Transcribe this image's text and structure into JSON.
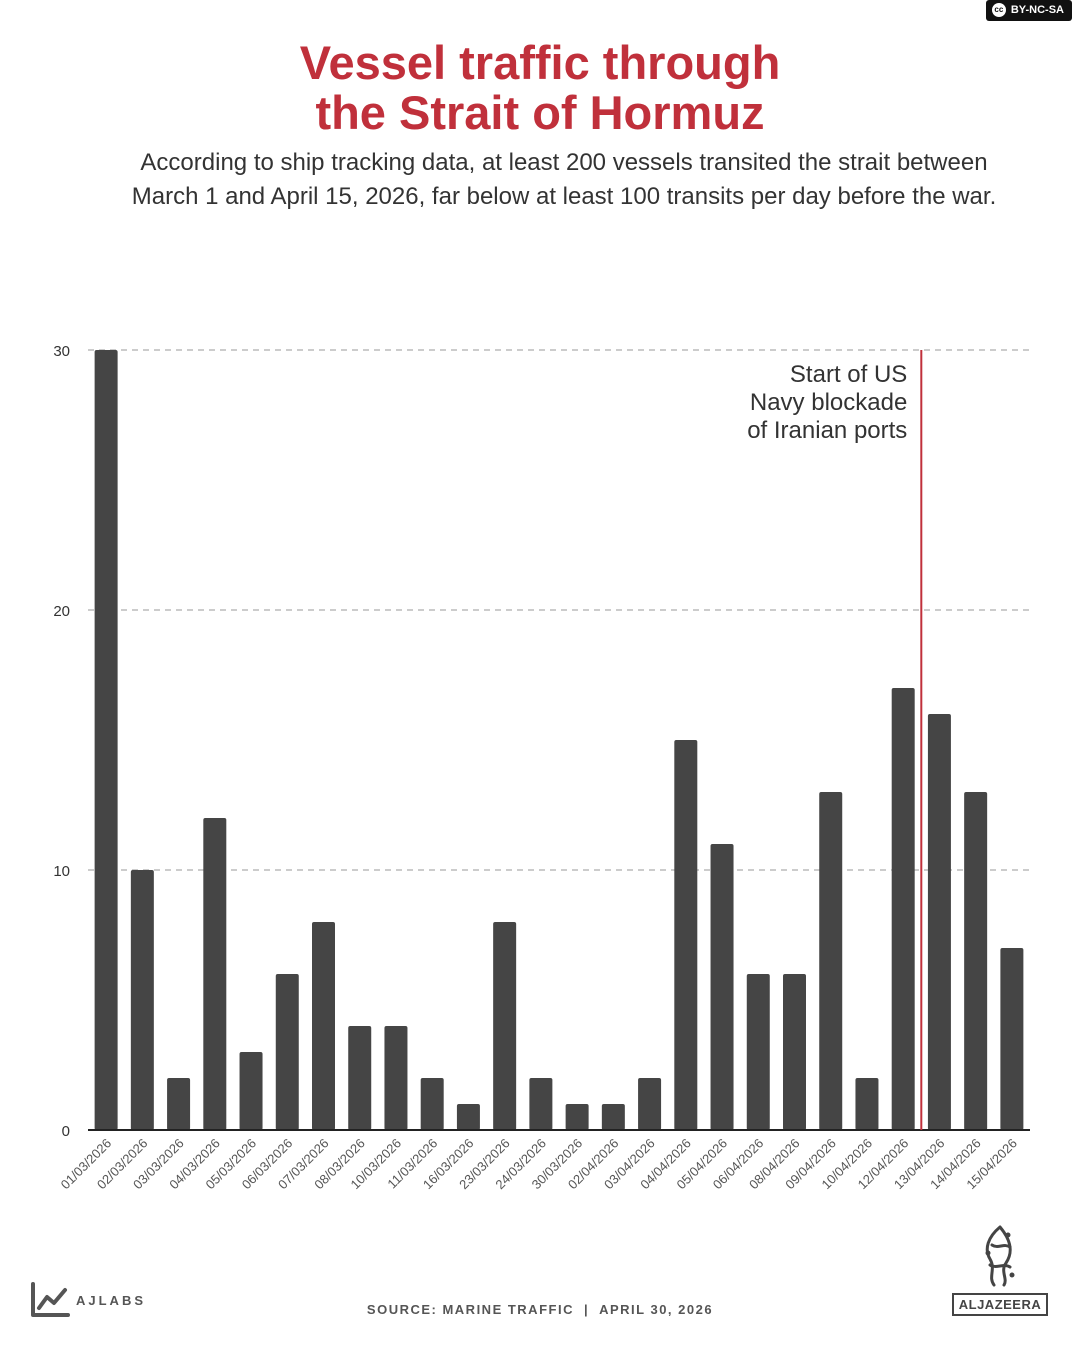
{
  "license": {
    "label": "BY-NC-SA",
    "icon": "cc-icon"
  },
  "header": {
    "title_line1": "Vessel traffic through",
    "title_line2": "the Strait of Hormuz",
    "subtitle": "According to ship tracking data, at least 200 vessels transited the strait between March 1 and April 15, 2026, far below at least 100 transits per day before the war."
  },
  "chart_data": {
    "type": "bar",
    "categories": [
      "01/03/2026",
      "02/03/2026",
      "03/03/2026",
      "04/03/2026",
      "05/03/2026",
      "06/03/2026",
      "07/03/2026",
      "08/03/2026",
      "10/03/2026",
      "11/03/2026",
      "16/03/2026",
      "23/03/2026",
      "24/03/2026",
      "30/03/2026",
      "02/04/2026",
      "03/04/2026",
      "04/04/2026",
      "05/04/2026",
      "06/04/2026",
      "08/04/2026",
      "09/04/2026",
      "10/04/2026",
      "12/04/2026",
      "13/04/2026",
      "14/04/2026",
      "15/04/2026"
    ],
    "values": [
      30,
      10,
      2,
      12,
      3,
      6,
      8,
      4,
      4,
      2,
      1,
      8,
      2,
      1,
      1,
      2,
      15,
      11,
      6,
      6,
      13,
      2,
      17,
      16,
      13,
      7
    ],
    "ylim": [
      0,
      30
    ],
    "yticks": [
      0,
      10,
      20,
      30
    ],
    "grid": true,
    "bar_color": "#454545",
    "annotation": {
      "lines": [
        "Start of US",
        "Navy blockade",
        "of Iranian ports"
      ],
      "between": [
        "12/04/2026",
        "13/04/2026"
      ],
      "color": "#c0303b"
    }
  },
  "footer": {
    "brand": "AJLABS",
    "brand_icon": "line-chart-icon",
    "source": "SOURCE: MARINE TRAFFIC",
    "date": "APRIL 30, 2026",
    "logo_text": "ALJAZEERA",
    "logo_icon": "aljazeera-calligraphy-icon"
  },
  "colors": {
    "accent": "#c0303b",
    "bar": "#454545",
    "grid": "#cccccc",
    "text": "#333333"
  }
}
